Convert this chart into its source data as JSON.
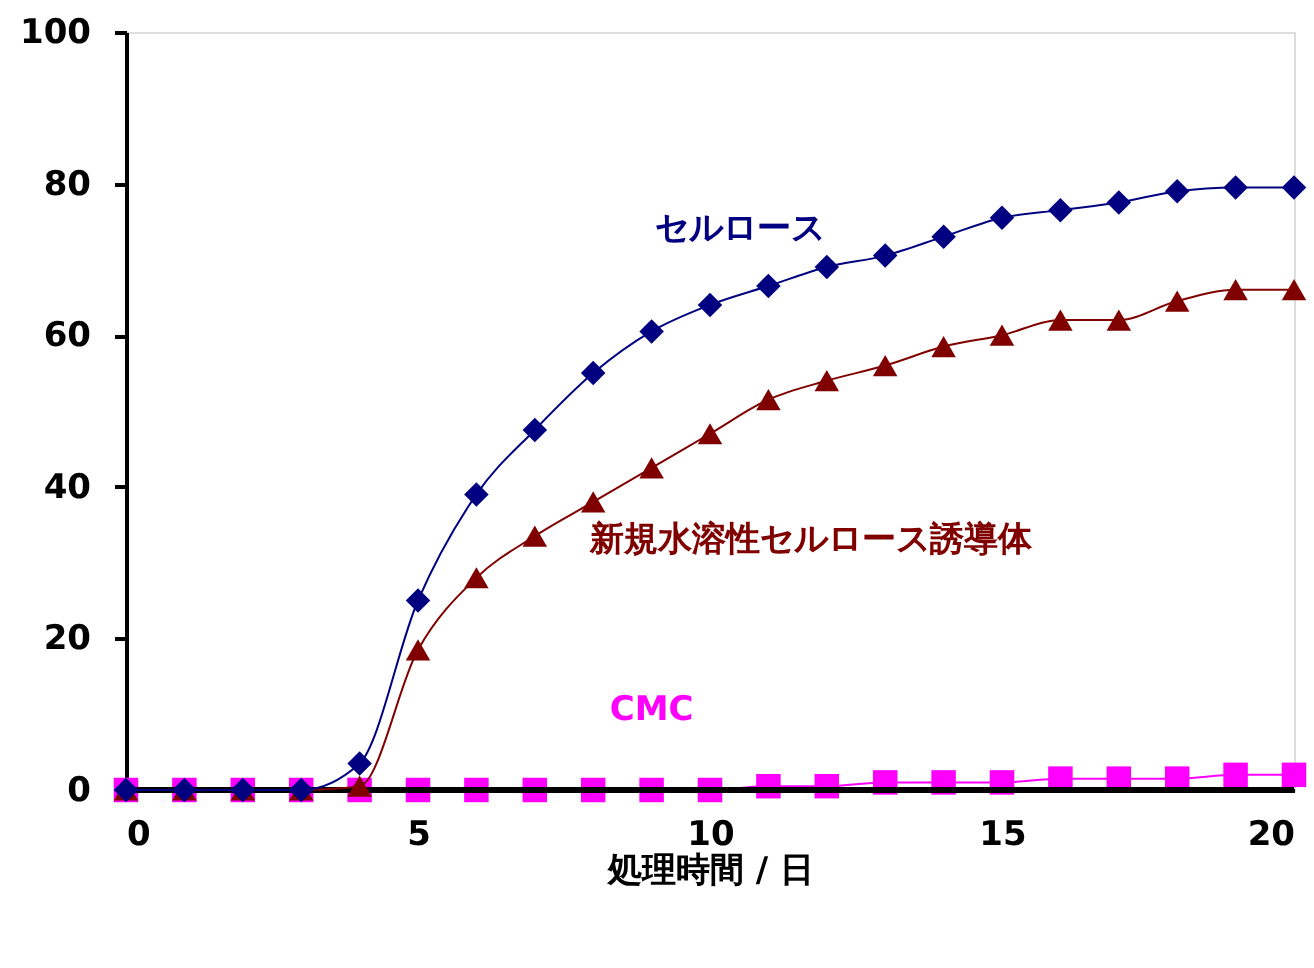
{
  "chart_data": {
    "type": "line",
    "xlabel": "処理時間 / 日",
    "x": [
      0,
      1,
      2,
      3,
      4,
      5,
      6,
      7,
      8,
      9,
      10,
      11,
      12,
      13,
      14,
      15,
      16,
      17,
      18,
      19,
      20
    ],
    "xlim": [
      0,
      20
    ],
    "xticks": [
      0,
      5,
      10,
      15,
      20
    ],
    "ylim": [
      0,
      100
    ],
    "yticks": [
      0,
      20,
      40,
      60,
      80,
      100
    ],
    "grid": false,
    "series": [
      {
        "name": "セルロース",
        "color": "#000080",
        "marker": "diamond",
        "values": [
          0,
          0,
          0,
          0,
          3.5,
          25,
          39,
          47.5,
          55,
          60.5,
          64,
          66.5,
          69,
          70.5,
          73,
          75.5,
          76.5,
          77.5,
          79,
          79.5,
          79.5
        ]
      },
      {
        "name": "新規水溶性セルロース誘導体",
        "color": "#800000",
        "marker": "triangle",
        "values": [
          0,
          0,
          0,
          0,
          0.5,
          18.5,
          28,
          33.5,
          38,
          42.5,
          47,
          51.5,
          54,
          56,
          58.5,
          60,
          62,
          62,
          64.5,
          66,
          66
        ]
      },
      {
        "color": "#000000",
        "marker": "none",
        "values": [
          0,
          0,
          0,
          0,
          0,
          0,
          0,
          0,
          0,
          0,
          0,
          0,
          0,
          0,
          0,
          0,
          0,
          0,
          0,
          0,
          0
        ]
      },
      {
        "name": "CMC",
        "color": "#ff00ff",
        "marker": "square",
        "values": [
          0,
          0,
          0,
          0,
          0,
          0,
          0,
          0,
          0,
          0,
          0,
          0.5,
          0.5,
          1,
          1,
          1,
          1.5,
          1.5,
          1.5,
          2,
          2
        ]
      }
    ]
  }
}
